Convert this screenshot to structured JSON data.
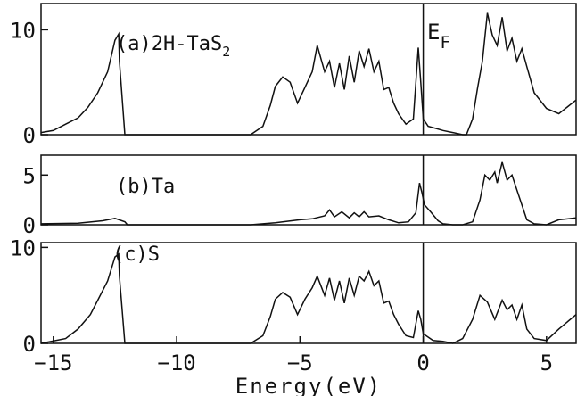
{
  "figure": {
    "xlabel": "Energy(eV)",
    "fermi_label": "E",
    "fermi_sub": "F"
  },
  "chart_data": [
    {
      "type": "line",
      "panel": "a",
      "label_main": "(a)2H-TaS",
      "label_sub": "2",
      "xlim": [
        -15.5,
        6.2
      ],
      "ylim": [
        0,
        12.5
      ],
      "yticks": [
        "0",
        "10"
      ],
      "ytick_values": [
        0,
        10
      ],
      "fermi_energy": 0,
      "series": [
        {
          "x": [
            -15.5,
            -15,
            -14.5,
            -14,
            -13.6,
            -13.2,
            -12.8,
            -12.5,
            -12.35,
            -12.32,
            -12.1,
            -12.1,
            -7,
            -6.5,
            -6.2,
            -6,
            -5.7,
            -5.4,
            -5.1,
            -4.8,
            -4.5,
            -4.3,
            -4,
            -3.8,
            -3.6,
            -3.4,
            -3.2,
            -3,
            -2.8,
            -2.6,
            -2.4,
            -2.2,
            -2.0,
            -1.8,
            -1.6,
            -1.4,
            -1.2,
            -1.0,
            -0.7,
            -0.4,
            -0.2,
            -0.1,
            0,
            0.2,
            0.5,
            0.8,
            1.2,
            1.6,
            1.75,
            2.0,
            2.2,
            2.4,
            2.6,
            2.8,
            3.0,
            3.2,
            3.4,
            3.6,
            3.8,
            4.0,
            4.2,
            4.5,
            5.0,
            5.5,
            6.2
          ],
          "y": [
            0.2,
            0.4,
            1,
            1.6,
            2.6,
            4,
            6,
            9,
            9.6,
            7,
            0,
            0,
            0,
            0.8,
            2.8,
            4.6,
            5.5,
            5,
            3,
            4.5,
            6,
            8.5,
            6,
            7,
            4.5,
            6.8,
            4.3,
            7.5,
            5,
            8,
            6.5,
            8.2,
            6,
            7,
            4.3,
            4.5,
            3,
            2,
            1,
            1.5,
            8.3,
            5,
            1.5,
            0.8,
            0.6,
            0.4,
            0.2,
            0,
            0,
            1.5,
            4.4,
            7,
            11.6,
            9.5,
            8.5,
            11.2,
            8,
            9.2,
            7,
            8.2,
            6.5,
            4,
            2.5,
            2,
            3.3
          ]
        }
      ]
    },
    {
      "type": "line",
      "panel": "b",
      "label_main": "(b)Ta",
      "xlim": [
        -15.5,
        6.2
      ],
      "ylim": [
        0,
        7
      ],
      "yticks": [
        "0",
        "5"
      ],
      "ytick_values": [
        0,
        5
      ],
      "fermi_energy": 0,
      "series": [
        {
          "x": [
            -15.5,
            -14,
            -13,
            -12.5,
            -12.1,
            -12,
            -7,
            -6,
            -5,
            -4.5,
            -4,
            -3.8,
            -3.6,
            -3.3,
            -3,
            -2.8,
            -2.6,
            -2.4,
            -2.2,
            -1.8,
            -1.4,
            -1,
            -0.6,
            -0.3,
            -0.15,
            -0.05,
            0.05,
            0.3,
            0.6,
            0.8,
            1.2,
            1.6,
            2.0,
            2.3,
            2.5,
            2.7,
            2.9,
            3.0,
            3.2,
            3.4,
            3.6,
            3.8,
            4.0,
            4.2,
            4.5,
            5.0,
            5.5,
            6.2
          ],
          "y": [
            0.1,
            0.15,
            0.4,
            0.65,
            0.3,
            0,
            0,
            0.2,
            0.5,
            0.6,
            0.9,
            1.5,
            0.8,
            1.3,
            0.7,
            1.2,
            0.8,
            1.3,
            0.8,
            0.9,
            0.5,
            0.2,
            0.3,
            1.2,
            4.2,
            3.2,
            2,
            1.3,
            0.4,
            0.1,
            0,
            0,
            0.3,
            2.5,
            5,
            4.5,
            5.3,
            4.2,
            6.3,
            4.5,
            5,
            3.5,
            2,
            0.5,
            0.1,
            0,
            0.5,
            0.7
          ]
        }
      ]
    },
    {
      "type": "line",
      "panel": "c",
      "label_main": "(c)S",
      "xlim": [
        -15.5,
        6.2
      ],
      "ylim": [
        0,
        10.5
      ],
      "yticks": [
        "0",
        "10"
      ],
      "ytick_values": [
        0,
        10
      ],
      "fermi_energy": 0,
      "series": [
        {
          "x": [
            -15.5,
            -14.5,
            -14,
            -13.5,
            -13.2,
            -12.8,
            -12.5,
            -12.35,
            -12.32,
            -12.1,
            -12.1,
            -7,
            -6.5,
            -6.2,
            -6,
            -5.7,
            -5.4,
            -5.1,
            -4.8,
            -4.5,
            -4.3,
            -4,
            -3.8,
            -3.6,
            -3.4,
            -3.2,
            -3,
            -2.8,
            -2.6,
            -2.4,
            -2.2,
            -2.0,
            -1.8,
            -1.6,
            -1.4,
            -1.2,
            -1.0,
            -0.7,
            -0.4,
            -0.2,
            -0.1,
            0,
            0.4,
            0.8,
            1.2,
            1.6,
            2.0,
            2.3,
            2.6,
            2.9,
            3.2,
            3.4,
            3.6,
            3.8,
            4.0,
            4.2,
            4.5,
            5.0,
            5.5,
            6.2
          ],
          "y": [
            0,
            0.5,
            1.5,
            3,
            4.5,
            6.5,
            9,
            9.3,
            7,
            0,
            0,
            0,
            0.8,
            2.8,
            4.6,
            5.3,
            4.8,
            3,
            4.6,
            5.8,
            7,
            5,
            6.8,
            4.5,
            6.5,
            4.2,
            6.8,
            5,
            7,
            6.5,
            7.5,
            6,
            6.5,
            4.2,
            4.4,
            3,
            2,
            0.8,
            0.6,
            3.4,
            2.5,
            1,
            0.3,
            0.2,
            0,
            0.5,
            2.5,
            5,
            4.3,
            2.5,
            4.5,
            3.5,
            4,
            2.5,
            4,
            1.5,
            0.5,
            0.3,
            1.5,
            3
          ]
        }
      ]
    }
  ],
  "xaxis": {
    "tick_values": [
      -15,
      -10,
      -5,
      0,
      5
    ],
    "tick_labels": [
      "−15",
      "−10",
      "−5",
      "0",
      "5"
    ]
  }
}
